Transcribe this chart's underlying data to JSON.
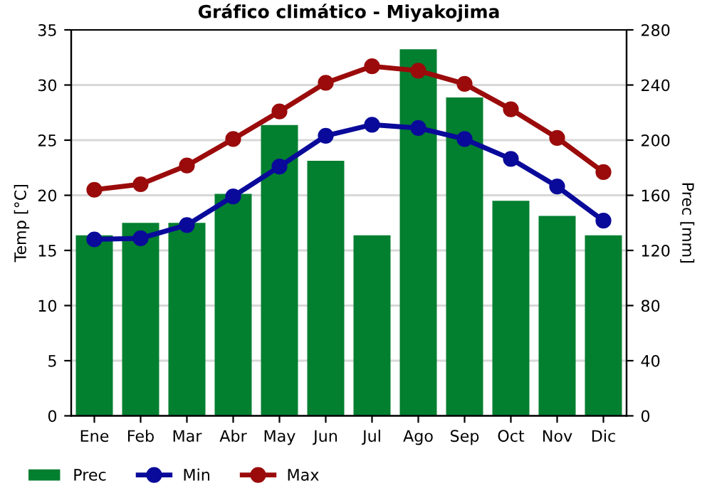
{
  "chart_data": {
    "type": "bar",
    "title": "Gráfico climático - Miyakojima",
    "ylabel": "Temp [°C]",
    "y2label": "Prec [mm]",
    "categories": [
      "Ene",
      "Feb",
      "Mar",
      "Abr",
      "May",
      "Jun",
      "Jul",
      "Ago",
      "Sep",
      "Oct",
      "Nov",
      "Dic"
    ],
    "series": [
      {
        "name": "Prec",
        "axis": "y2",
        "color": "#037f30",
        "values": [
          131,
          140,
          140,
          161,
          211,
          185,
          131,
          266,
          231,
          156,
          145,
          131
        ]
      },
      {
        "name": "Min",
        "type": "line",
        "color": "#0a0a9a",
        "values": [
          16.0,
          16.1,
          17.3,
          19.9,
          22.6,
          25.4,
          26.4,
          26.1,
          25.1,
          23.3,
          20.8,
          17.7
        ]
      },
      {
        "name": "Max",
        "type": "line",
        "color": "#9b0b0b",
        "values": [
          20.5,
          21.0,
          22.7,
          25.1,
          27.6,
          30.2,
          31.7,
          31.3,
          30.1,
          27.8,
          25.2,
          22.1
        ]
      }
    ],
    "ylim": [
      0,
      35
    ],
    "yticks": [
      0,
      5,
      10,
      15,
      20,
      25,
      30,
      35
    ],
    "y2lim": [
      0,
      280
    ],
    "y2ticks": [
      0,
      40,
      80,
      120,
      160,
      200,
      240,
      280
    ],
    "grid": true,
    "legend": "bottom",
    "marker": "circle",
    "line_style": "solid"
  }
}
